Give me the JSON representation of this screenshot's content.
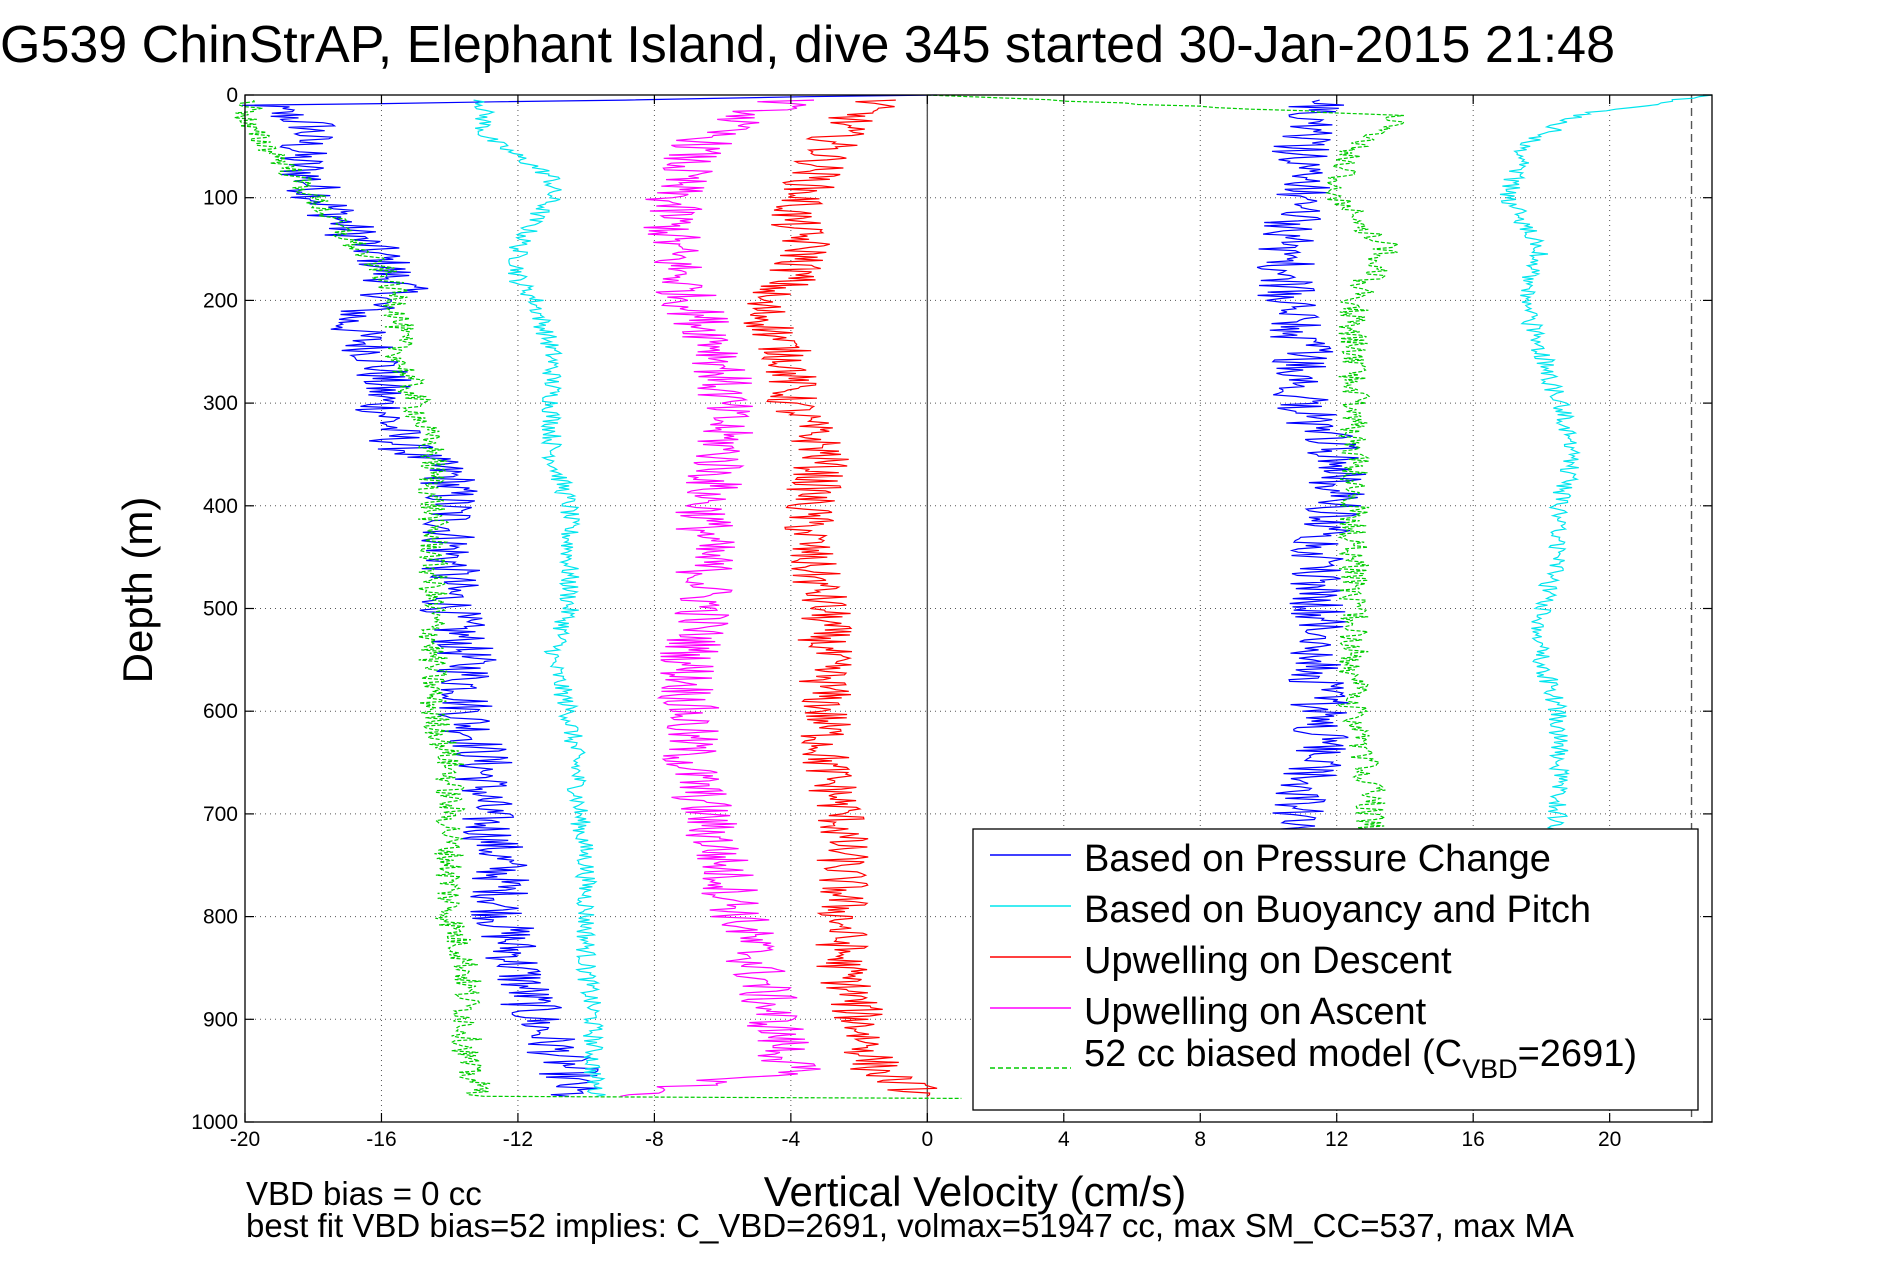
{
  "title": "G539 ChinStrAP, Elephant Island, dive 345 started 30-Jan-2015 21:48",
  "notes": {
    "bias_line": "VBD bias = 0 cc",
    "fit_line": "best fit VBD bias=52 implies: C_VBD=2691, volmax=51947 cc, max SM_CC=537, max MA"
  },
  "chart_data": {
    "type": "line",
    "xlabel": "Vertical Velocity (cm/s)",
    "ylabel": "Depth (m)",
    "xlim": [
      -20,
      23
    ],
    "ylim": [
      0,
      1000
    ],
    "y_reversed": true,
    "xticks": [
      -20,
      -16,
      -12,
      -8,
      -4,
      0,
      4,
      8,
      12,
      16,
      20
    ],
    "xtick_labels": [
      "-20",
      "-16",
      "-12",
      "-8",
      "-4",
      "0",
      "4",
      "8",
      "12",
      "16",
      "20"
    ],
    "yticks": [
      0,
      100,
      200,
      300,
      400,
      500,
      600,
      700,
      800,
      900,
      1000
    ],
    "ytick_labels": [
      "0",
      "100",
      "200",
      "300",
      "400",
      "500",
      "600",
      "700",
      "800",
      "900",
      "1000"
    ],
    "grid": true,
    "grid_style": "dotted",
    "legend_position": "bottom-right",
    "reference_lines": [
      {
        "axis": "x",
        "value": 0,
        "style": "solid",
        "color": "#555555"
      },
      {
        "axis": "x",
        "value": 22.4,
        "style": "dashed",
        "color": "#555555"
      }
    ],
    "series": [
      {
        "name": "Based on Pressure Change",
        "color": "#0000ff",
        "style": "solid",
        "noise": 0.9,
        "points": [
          {
            "x": 0,
            "y": 0
          },
          {
            "x": -19.5,
            "y": 10
          },
          {
            "x": -18,
            "y": 30
          },
          {
            "x": -18.5,
            "y": 60
          },
          {
            "x": -18,
            "y": 90
          },
          {
            "x": -17,
            "y": 130
          },
          {
            "x": -16,
            "y": 160
          },
          {
            "x": -15.5,
            "y": 190
          },
          {
            "x": -17,
            "y": 220
          },
          {
            "x": -16,
            "y": 260
          },
          {
            "x": -16,
            "y": 300
          },
          {
            "x": -15.5,
            "y": 340
          },
          {
            "x": -14,
            "y": 370
          },
          {
            "x": -14,
            "y": 400
          },
          {
            "x": -14,
            "y": 450
          },
          {
            "x": -14,
            "y": 500
          },
          {
            "x": -13.5,
            "y": 550
          },
          {
            "x": -13.5,
            "y": 600
          },
          {
            "x": -13,
            "y": 650
          },
          {
            "x": -13,
            "y": 700
          },
          {
            "x": -12.5,
            "y": 750
          },
          {
            "x": -12.5,
            "y": 800
          },
          {
            "x": -12,
            "y": 850
          },
          {
            "x": -11.5,
            "y": 900
          },
          {
            "x": -10.5,
            "y": 950
          },
          {
            "x": -10.5,
            "y": 975
          }
        ]
      },
      {
        "name": "Based on Pressure Change",
        "color": "#0000ff",
        "style": "solid",
        "noise": 0.9,
        "points": [
          {
            "x": 10.5,
            "y": 715
          },
          {
            "x": 11,
            "y": 680
          },
          {
            "x": 11.5,
            "y": 640
          },
          {
            "x": 11.5,
            "y": 600
          },
          {
            "x": 11.5,
            "y": 550
          },
          {
            "x": 11.5,
            "y": 500
          },
          {
            "x": 11.5,
            "y": 450
          },
          {
            "x": 12,
            "y": 400
          },
          {
            "x": 12,
            "y": 350
          },
          {
            "x": 11,
            "y": 300
          },
          {
            "x": 11,
            "y": 250
          },
          {
            "x": 10.5,
            "y": 200
          },
          {
            "x": 10.5,
            "y": 150
          },
          {
            "x": 11,
            "y": 100
          },
          {
            "x": 11,
            "y": 50
          },
          {
            "x": 11.5,
            "y": 5
          }
        ]
      },
      {
        "name": "Based on Buoyancy and Pitch",
        "color": "#00e5ee",
        "style": "solid",
        "noise": 0.3,
        "points": [
          {
            "x": -13,
            "y": 5
          },
          {
            "x": -13,
            "y": 20
          },
          {
            "x": -13,
            "y": 40
          },
          {
            "x": -12,
            "y": 60
          },
          {
            "x": -11,
            "y": 80
          },
          {
            "x": -11,
            "y": 100
          },
          {
            "x": -11.5,
            "y": 120
          },
          {
            "x": -12,
            "y": 150
          },
          {
            "x": -12,
            "y": 180
          },
          {
            "x": -11.5,
            "y": 200
          },
          {
            "x": -11,
            "y": 250
          },
          {
            "x": -11,
            "y": 300
          },
          {
            "x": -11,
            "y": 350
          },
          {
            "x": -10.5,
            "y": 400
          },
          {
            "x": -10.5,
            "y": 450
          },
          {
            "x": -10.5,
            "y": 500
          },
          {
            "x": -11,
            "y": 550
          },
          {
            "x": -10.5,
            "y": 600
          },
          {
            "x": -10.3,
            "y": 650
          },
          {
            "x": -10.2,
            "y": 700
          },
          {
            "x": -10,
            "y": 750
          },
          {
            "x": -10,
            "y": 800
          },
          {
            "x": -10,
            "y": 850
          },
          {
            "x": -9.8,
            "y": 900
          },
          {
            "x": -9.8,
            "y": 950
          },
          {
            "x": -9.7,
            "y": 975
          }
        ]
      },
      {
        "name": "Based on Buoyancy and Pitch",
        "color": "#00e5ee",
        "style": "solid",
        "noise": 0.3,
        "points": [
          {
            "x": 18.5,
            "y": 715
          },
          {
            "x": 18.5,
            "y": 680
          },
          {
            "x": 18.5,
            "y": 640
          },
          {
            "x": 18.5,
            "y": 600
          },
          {
            "x": 18,
            "y": 550
          },
          {
            "x": 18,
            "y": 500
          },
          {
            "x": 18.5,
            "y": 450
          },
          {
            "x": 18.5,
            "y": 400
          },
          {
            "x": 19,
            "y": 350
          },
          {
            "x": 18.5,
            "y": 300
          },
          {
            "x": 18,
            "y": 250
          },
          {
            "x": 17.5,
            "y": 200
          },
          {
            "x": 18,
            "y": 150
          },
          {
            "x": 17,
            "y": 100
          },
          {
            "x": 17.5,
            "y": 50
          },
          {
            "x": 19,
            "y": 20
          },
          {
            "x": 23,
            "y": 0
          }
        ]
      },
      {
        "name": "Upwelling on Descent",
        "color": "#ff0000",
        "style": "solid",
        "noise": 0.8,
        "points": [
          {
            "x": -1.5,
            "y": 5
          },
          {
            "x": -2.5,
            "y": 30
          },
          {
            "x": -3,
            "y": 60
          },
          {
            "x": -3.5,
            "y": 90
          },
          {
            "x": -4,
            "y": 120
          },
          {
            "x": -3.5,
            "y": 150
          },
          {
            "x": -4,
            "y": 180
          },
          {
            "x": -5,
            "y": 200
          },
          {
            "x": -4.5,
            "y": 230
          },
          {
            "x": -4,
            "y": 260
          },
          {
            "x": -4,
            "y": 300
          },
          {
            "x": -3,
            "y": 350
          },
          {
            "x": -3.5,
            "y": 400
          },
          {
            "x": -3.5,
            "y": 450
          },
          {
            "x": -3,
            "y": 500
          },
          {
            "x": -3,
            "y": 550
          },
          {
            "x": -3,
            "y": 600
          },
          {
            "x": -3,
            "y": 650
          },
          {
            "x": -2.5,
            "y": 700
          },
          {
            "x": -2.5,
            "y": 750
          },
          {
            "x": -2.5,
            "y": 800
          },
          {
            "x": -2.5,
            "y": 850
          },
          {
            "x": -2,
            "y": 900
          },
          {
            "x": -1.5,
            "y": 950
          },
          {
            "x": 0,
            "y": 975
          }
        ]
      },
      {
        "name": "Upwelling on Ascent",
        "color": "#ff00ff",
        "style": "solid",
        "noise": 0.9,
        "points": [
          {
            "x": -4,
            "y": 5
          },
          {
            "x": -6,
            "y": 30
          },
          {
            "x": -7,
            "y": 60
          },
          {
            "x": -7.5,
            "y": 100
          },
          {
            "x": -7.5,
            "y": 150
          },
          {
            "x": -7,
            "y": 200
          },
          {
            "x": -6,
            "y": 250
          },
          {
            "x": -6,
            "y": 300
          },
          {
            "x": -6,
            "y": 350
          },
          {
            "x": -6.5,
            "y": 400
          },
          {
            "x": -6.5,
            "y": 450
          },
          {
            "x": -6.5,
            "y": 500
          },
          {
            "x": -7,
            "y": 550
          },
          {
            "x": -7,
            "y": 600
          },
          {
            "x": -7,
            "y": 650
          },
          {
            "x": -6.5,
            "y": 700
          },
          {
            "x": -6,
            "y": 750
          },
          {
            "x": -5.5,
            "y": 800
          },
          {
            "x": -5,
            "y": 850
          },
          {
            "x": -4.5,
            "y": 900
          },
          {
            "x": -4,
            "y": 950
          },
          {
            "x": -9,
            "y": 975
          }
        ]
      },
      {
        "name": "52 cc biased model (C_VBD=2691)",
        "color": "#00cc00",
        "style": "dashed",
        "noise": 0.45,
        "points": [
          {
            "x": -19.8,
            "y": 5
          },
          {
            "x": -20,
            "y": 30
          },
          {
            "x": -19,
            "y": 60
          },
          {
            "x": -18,
            "y": 100
          },
          {
            "x": -17,
            "y": 140
          },
          {
            "x": -16,
            "y": 170
          },
          {
            "x": -15.5,
            "y": 200
          },
          {
            "x": -15.5,
            "y": 250
          },
          {
            "x": -15,
            "y": 300
          },
          {
            "x": -14.5,
            "y": 350
          },
          {
            "x": -14.5,
            "y": 400
          },
          {
            "x": -14.5,
            "y": 450
          },
          {
            "x": -14.5,
            "y": 500
          },
          {
            "x": -14.5,
            "y": 550
          },
          {
            "x": -14.5,
            "y": 600
          },
          {
            "x": -14,
            "y": 650
          },
          {
            "x": -14,
            "y": 700
          },
          {
            "x": -14,
            "y": 750
          },
          {
            "x": -14,
            "y": 800
          },
          {
            "x": -13.5,
            "y": 850
          },
          {
            "x": -13.5,
            "y": 900
          },
          {
            "x": -13.5,
            "y": 950
          },
          {
            "x": -13,
            "y": 975
          },
          {
            "x": 1,
            "y": 977
          }
        ]
      },
      {
        "name": "52 cc biased model (C_VBD=2691)",
        "color": "#00cc00",
        "style": "dashed",
        "noise": 0.45,
        "points": [
          {
            "x": 13,
            "y": 715
          },
          {
            "x": 13,
            "y": 680
          },
          {
            "x": 12.8,
            "y": 640
          },
          {
            "x": 12.5,
            "y": 600
          },
          {
            "x": 12.5,
            "y": 550
          },
          {
            "x": 12.5,
            "y": 500
          },
          {
            "x": 12.5,
            "y": 450
          },
          {
            "x": 12.5,
            "y": 400
          },
          {
            "x": 12.5,
            "y": 350
          },
          {
            "x": 12.5,
            "y": 300
          },
          {
            "x": 12.5,
            "y": 250
          },
          {
            "x": 12.5,
            "y": 200
          },
          {
            "x": 13.5,
            "y": 150
          },
          {
            "x": 12,
            "y": 100
          },
          {
            "x": 12.5,
            "y": 50
          },
          {
            "x": 14,
            "y": 20
          },
          {
            "x": 0,
            "y": 0
          }
        ]
      }
    ],
    "legend": [
      {
        "text": "Based on Pressure Change",
        "color": "#0000ff",
        "style": "solid"
      },
      {
        "text": "Based on Buoyancy and Pitch",
        "color": "#00e5ee",
        "style": "solid"
      },
      {
        "text": "Upwelling on Descent",
        "color": "#ff0000",
        "style": "solid"
      },
      {
        "text": "Upwelling on Ascent",
        "color": "#ff00ff",
        "style": "solid"
      },
      {
        "text": "52 cc biased model (C",
        "sub": "VBD",
        "after": "=2691)",
        "color": "#00cc00",
        "style": "dashed"
      }
    ]
  }
}
